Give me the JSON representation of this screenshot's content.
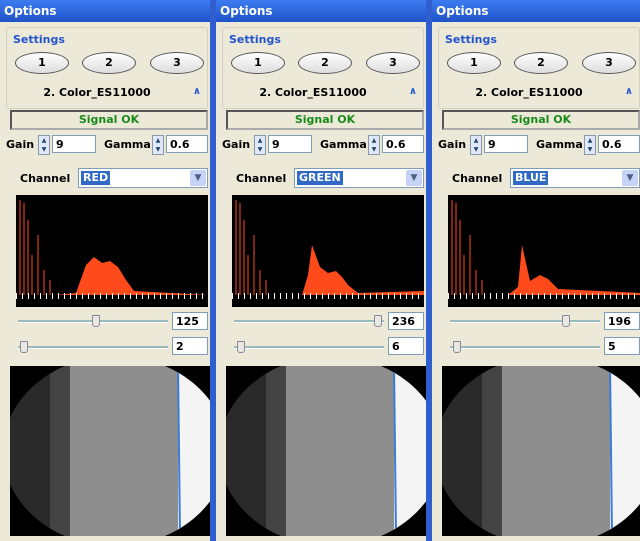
{
  "panels": [
    {
      "title": "Options",
      "settings_label": "Settings",
      "buttons": [
        "1",
        "2",
        "3"
      ],
      "profile": "2. Color_ES11000",
      "status": "Signal OK",
      "gain_label": "Gain",
      "gain": 9,
      "gamma_label": "Gamma",
      "gamma": 0.6,
      "channel_label": "Channel",
      "channel": "RED",
      "slider_1": 125,
      "slider_2": 2
    },
    {
      "title": "Options",
      "settings_label": "Settings",
      "buttons": [
        "1",
        "2",
        "3"
      ],
      "profile": "2. Color_ES11000",
      "status": "Signal OK",
      "gain_label": "Gain",
      "gain": 9,
      "gamma_label": "Gamma",
      "gamma": 0.6,
      "channel_label": "Channel",
      "channel": "GREEN",
      "slider_1": 236,
      "slider_2": 6
    },
    {
      "title": "Options",
      "settings_label": "Settings",
      "buttons": [
        "1",
        "2",
        "3"
      ],
      "profile": "2. Color_ES11000",
      "status": "Signal OK",
      "gain_label": "Gain",
      "gain": 9,
      "gamma_label": "Gamma",
      "gamma": 0.6,
      "channel_label": "Channel",
      "channel": "BLUE",
      "slider_1": 196,
      "slider_2": 5
    }
  ]
}
